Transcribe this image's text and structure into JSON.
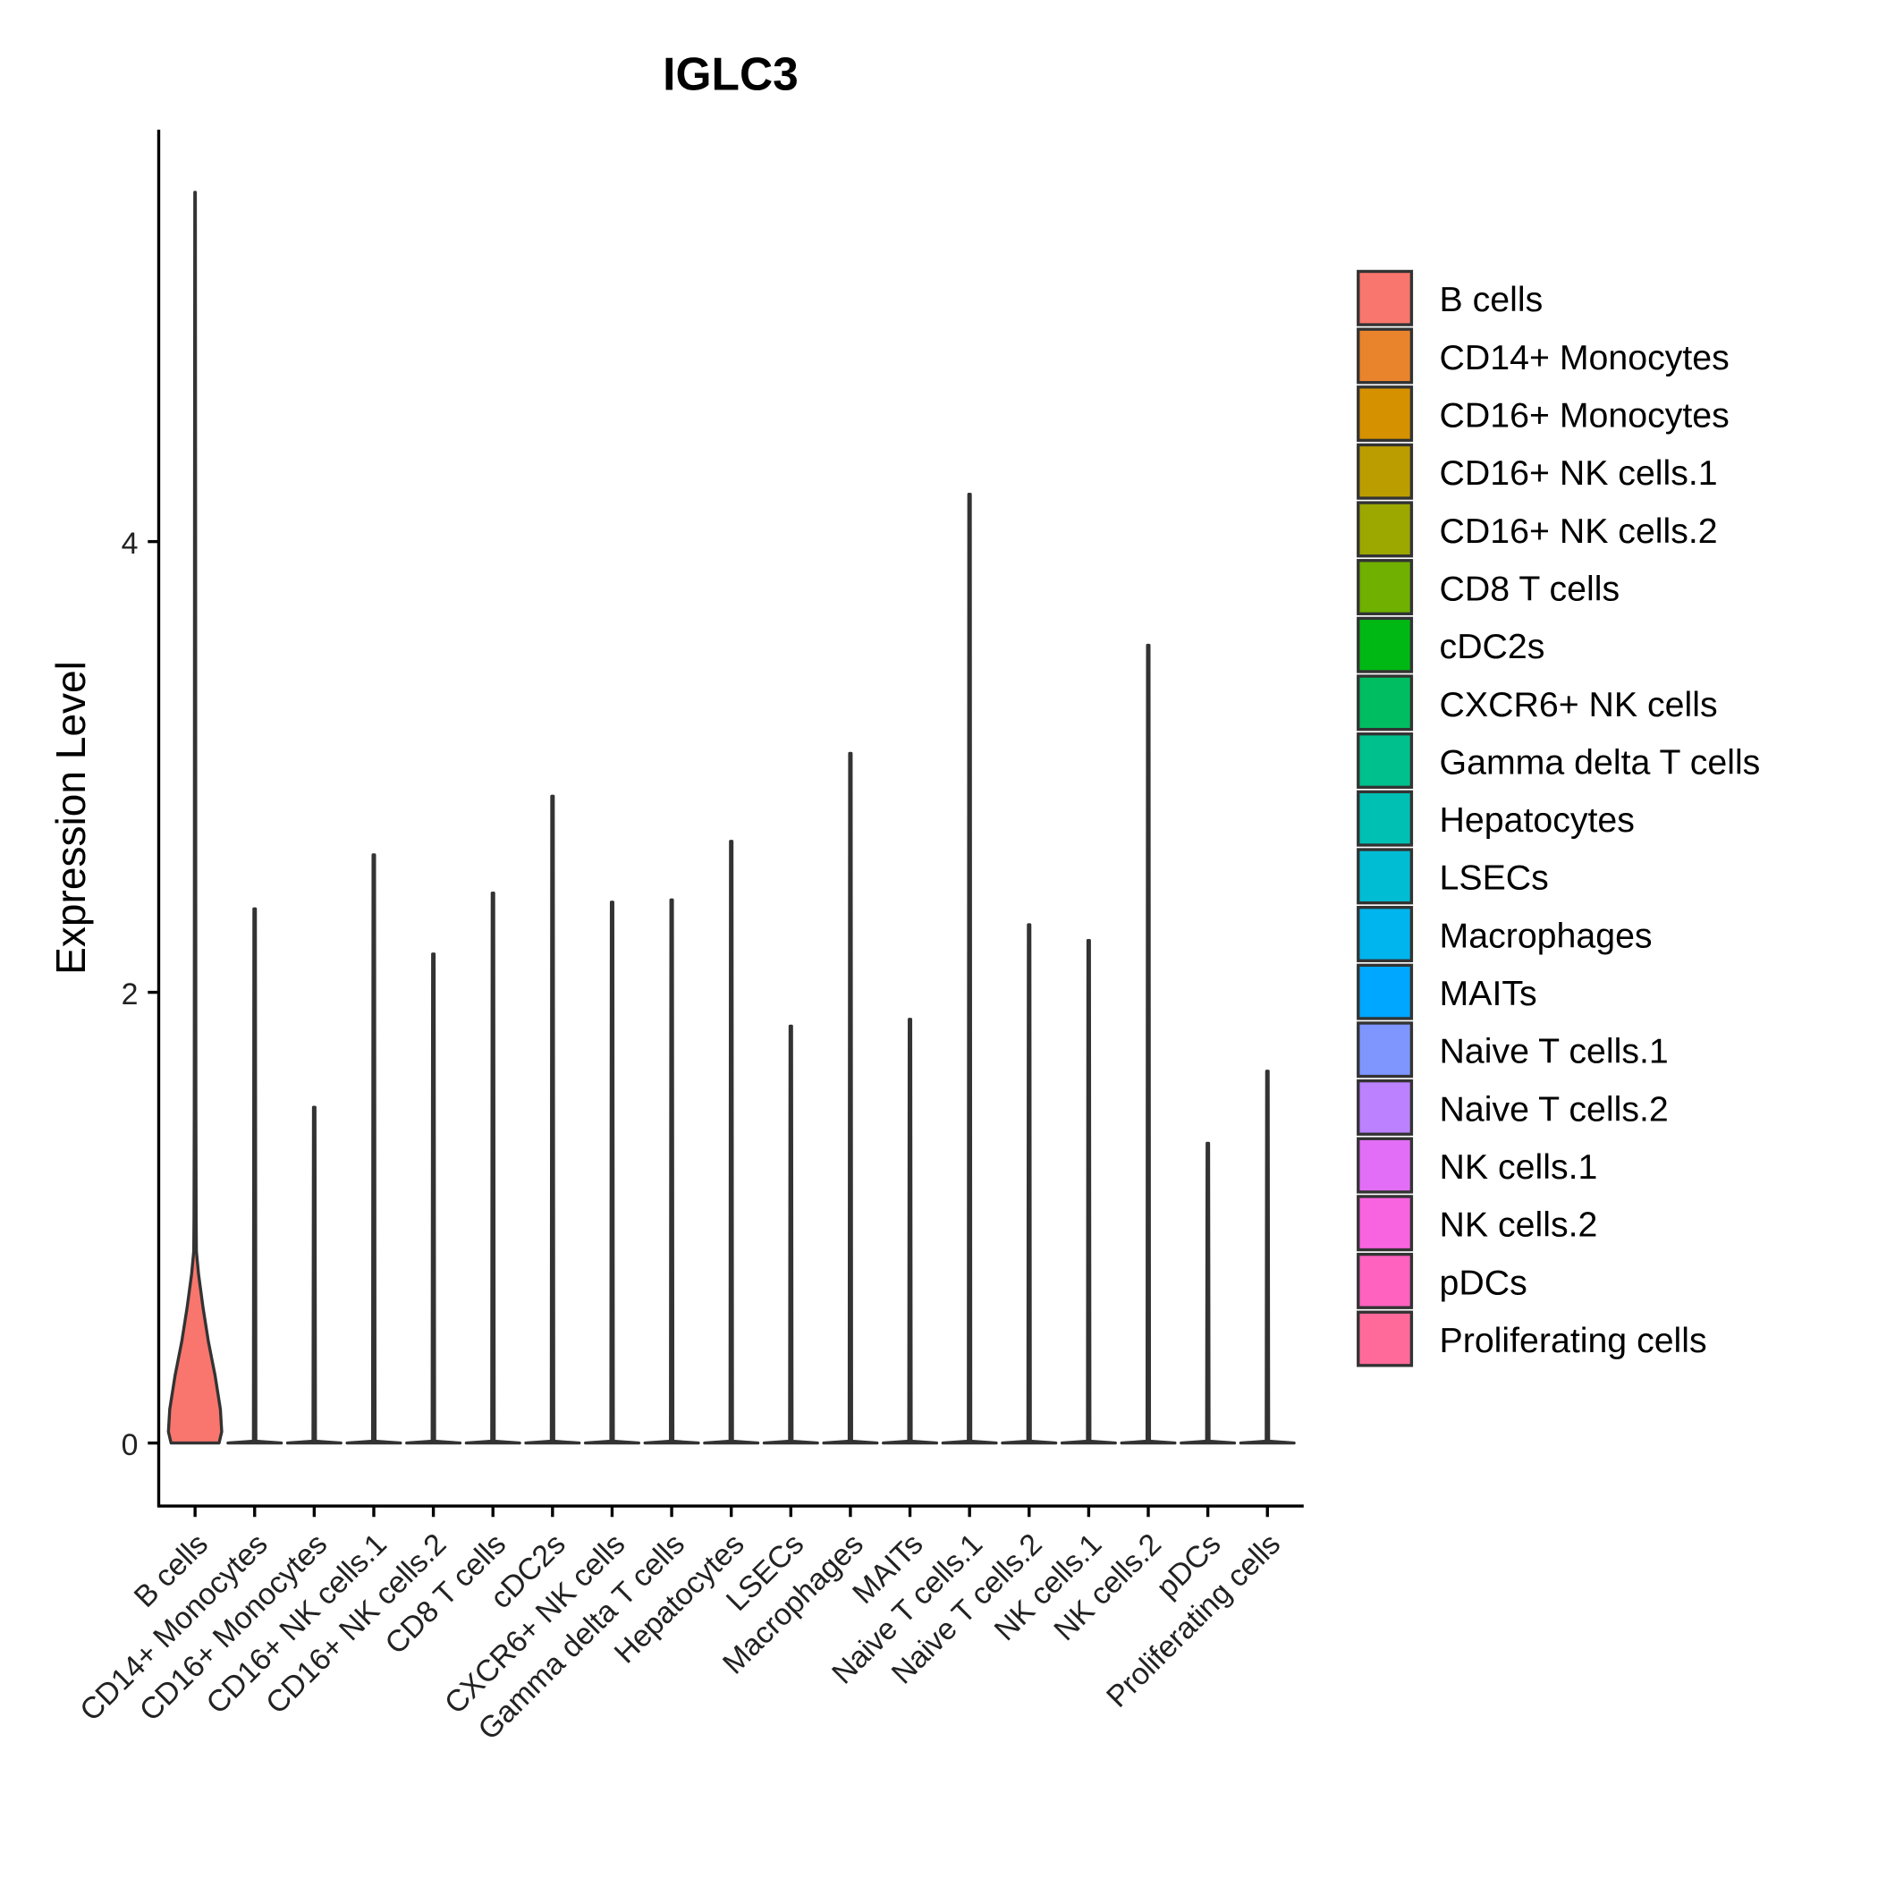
{
  "chart_data": {
    "type": "violin",
    "title": "IGLC3",
    "xlabel": "",
    "ylabel": "Expression Level",
    "ylim": [
      -0.28,
      5.84
    ],
    "yticks": [
      0,
      2,
      4
    ],
    "grid": false,
    "legend_position": "right",
    "categories": [
      "B cells",
      "CD14+ Monocytes",
      "CD16+ Monocytes",
      "CD16+ NK cells.1",
      "CD16+ NK cells.2",
      "CD8 T cells",
      "cDC2s",
      "CXCR6+ NK cells",
      "Gamma delta T cells",
      "Hepatocytes",
      "LSECs",
      "Macrophages",
      "MAITs",
      "Naive T cells.1",
      "Naive T cells.2",
      "NK cells.1",
      "NK cells.2",
      "pDCs",
      "Proliferating cells"
    ],
    "max_values": [
      5.55,
      2.37,
      1.49,
      2.61,
      2.17,
      2.44,
      2.87,
      2.4,
      2.41,
      2.67,
      1.85,
      3.06,
      1.88,
      4.21,
      2.3,
      2.23,
      3.54,
      1.33,
      1.65
    ],
    "colors": [
      "#F8766D",
      "#E9842C",
      "#D69100",
      "#BC9D00",
      "#9CA700",
      "#6FB000",
      "#00B813",
      "#00BD61",
      "#00C08E",
      "#00C0B4",
      "#00BDD4",
      "#00B5EE",
      "#00A7FF",
      "#7F96FF",
      "#BC81FF",
      "#E26EF7",
      "#F863DF",
      "#FF62BF",
      "#FF6A9A"
    ],
    "b_cells_density": {
      "y": [
        0,
        0.05,
        0.15,
        0.3,
        0.45,
        0.6,
        0.75,
        0.85,
        1.0,
        1.5,
        2.5,
        4.0,
        5.55
      ],
      "half_width": [
        0.9,
        1.0,
        0.95,
        0.75,
        0.5,
        0.3,
        0.13,
        0.05,
        0.04,
        0.03,
        0.025,
        0.02,
        0.01
      ]
    }
  }
}
